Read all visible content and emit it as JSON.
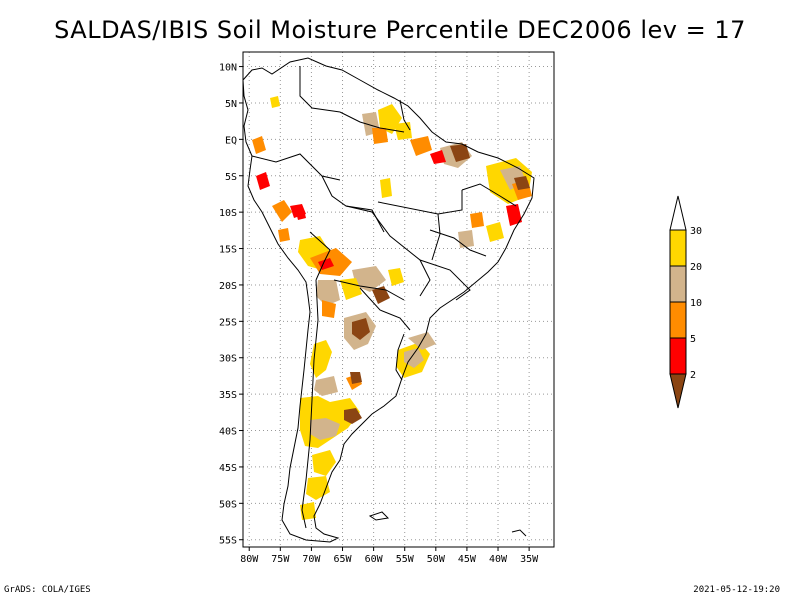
{
  "title": "SALDAS/IBIS Soil Moisture Percentile DEC2006 lev = 17",
  "footer": {
    "left": "GrADS: COLA/IGES",
    "right": "2021-05-12-19:20"
  },
  "map": {
    "lon_range": [
      -81,
      -31
    ],
    "lat_range": [
      -56,
      12
    ],
    "lon_ticks": [
      -80,
      -75,
      -70,
      -65,
      -60,
      -55,
      -50,
      -45,
      -40,
      -35
    ],
    "lon_tick_labels": [
      "80W",
      "75W",
      "70W",
      "65W",
      "60W",
      "55W",
      "50W",
      "45W",
      "40W",
      "35W"
    ],
    "lat_ticks": [
      10,
      5,
      0,
      -5,
      -10,
      -15,
      -20,
      -25,
      -30,
      -35,
      -40,
      -45,
      -50,
      -55
    ],
    "lat_tick_labels": [
      "10N",
      "5N",
      "EQ",
      "5S",
      "10S",
      "15S",
      "20S",
      "25S",
      "30S",
      "35S",
      "40S",
      "45S",
      "50S",
      "55S"
    ],
    "grid": true
  },
  "legend": {
    "breaks": [
      "2",
      "5",
      "10",
      "20",
      "30"
    ],
    "colors": [
      "#8b4513",
      "#ff0000",
      "#ff8c00",
      "#d2b48c",
      "#ffd700",
      "#ffffff"
    ]
  },
  "colors": {
    "brown": "#8b4513",
    "red": "#ff0000",
    "orange": "#ff8c00",
    "tan": "#d2b48c",
    "yellow": "#ffd700"
  }
}
